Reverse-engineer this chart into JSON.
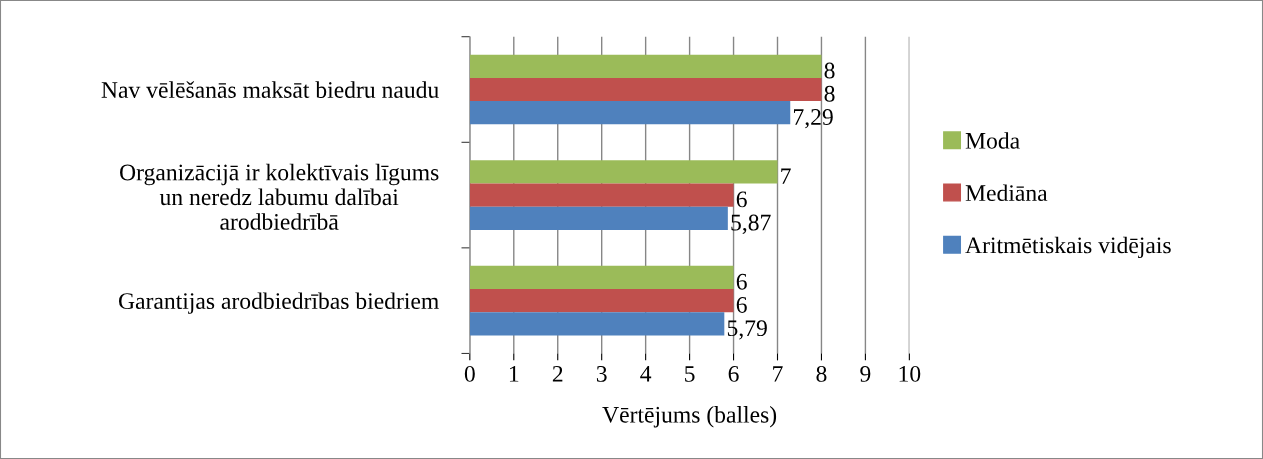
{
  "chart_data": {
    "type": "bar",
    "orientation": "horizontal",
    "xlabel": "Vērtējums (balles)",
    "categories": [
      "Nav vēlēšanās maksāt biedru naudu",
      "Organizācijā ir kolektīvais līgums\nun neredz labumu dalībai\narodbiedrībā",
      "Garantijas arodbiedrības biedriem"
    ],
    "series": [
      {
        "name": "Moda",
        "color": "#9bbb59",
        "values": [
          8,
          7,
          6
        ],
        "value_labels": [
          "8",
          "7",
          "6"
        ]
      },
      {
        "name": "Mediāna",
        "color": "#c0504d",
        "values": [
          8,
          6,
          6
        ],
        "value_labels": [
          "8",
          "6",
          "6"
        ]
      },
      {
        "name": "Aritmētiskais vidējais",
        "color": "#4f81bd",
        "values": [
          7.29,
          5.87,
          5.79
        ],
        "value_labels": [
          "7,29",
          "5,87",
          "5,79"
        ]
      }
    ],
    "xlim": [
      0,
      10
    ],
    "xticks": [
      0,
      1,
      2,
      3,
      4,
      5,
      6,
      7,
      8,
      9,
      10
    ],
    "grid": "x",
    "legend": "right"
  }
}
